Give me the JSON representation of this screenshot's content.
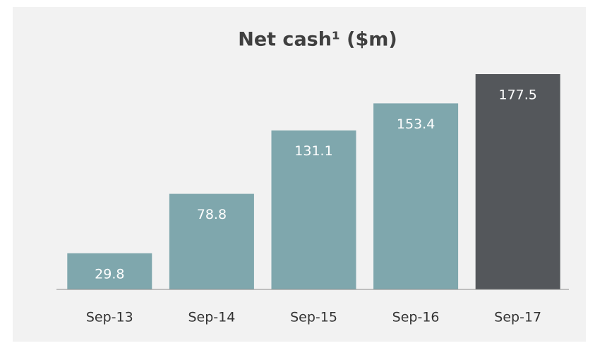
{
  "chart_data": {
    "type": "bar",
    "title": "Net cash¹ ($m)",
    "categories": [
      "Sep-13",
      "Sep-14",
      "Sep-15",
      "Sep-16",
      "Sep-17"
    ],
    "values": [
      29.8,
      78.8,
      131.1,
      153.4,
      177.5
    ],
    "colors": [
      "#7fa7ad",
      "#7fa7ad",
      "#7fa7ad",
      "#7fa7ad",
      "#54575b"
    ],
    "label_color": "#ffffff",
    "background": "#f2f2f2"
  }
}
